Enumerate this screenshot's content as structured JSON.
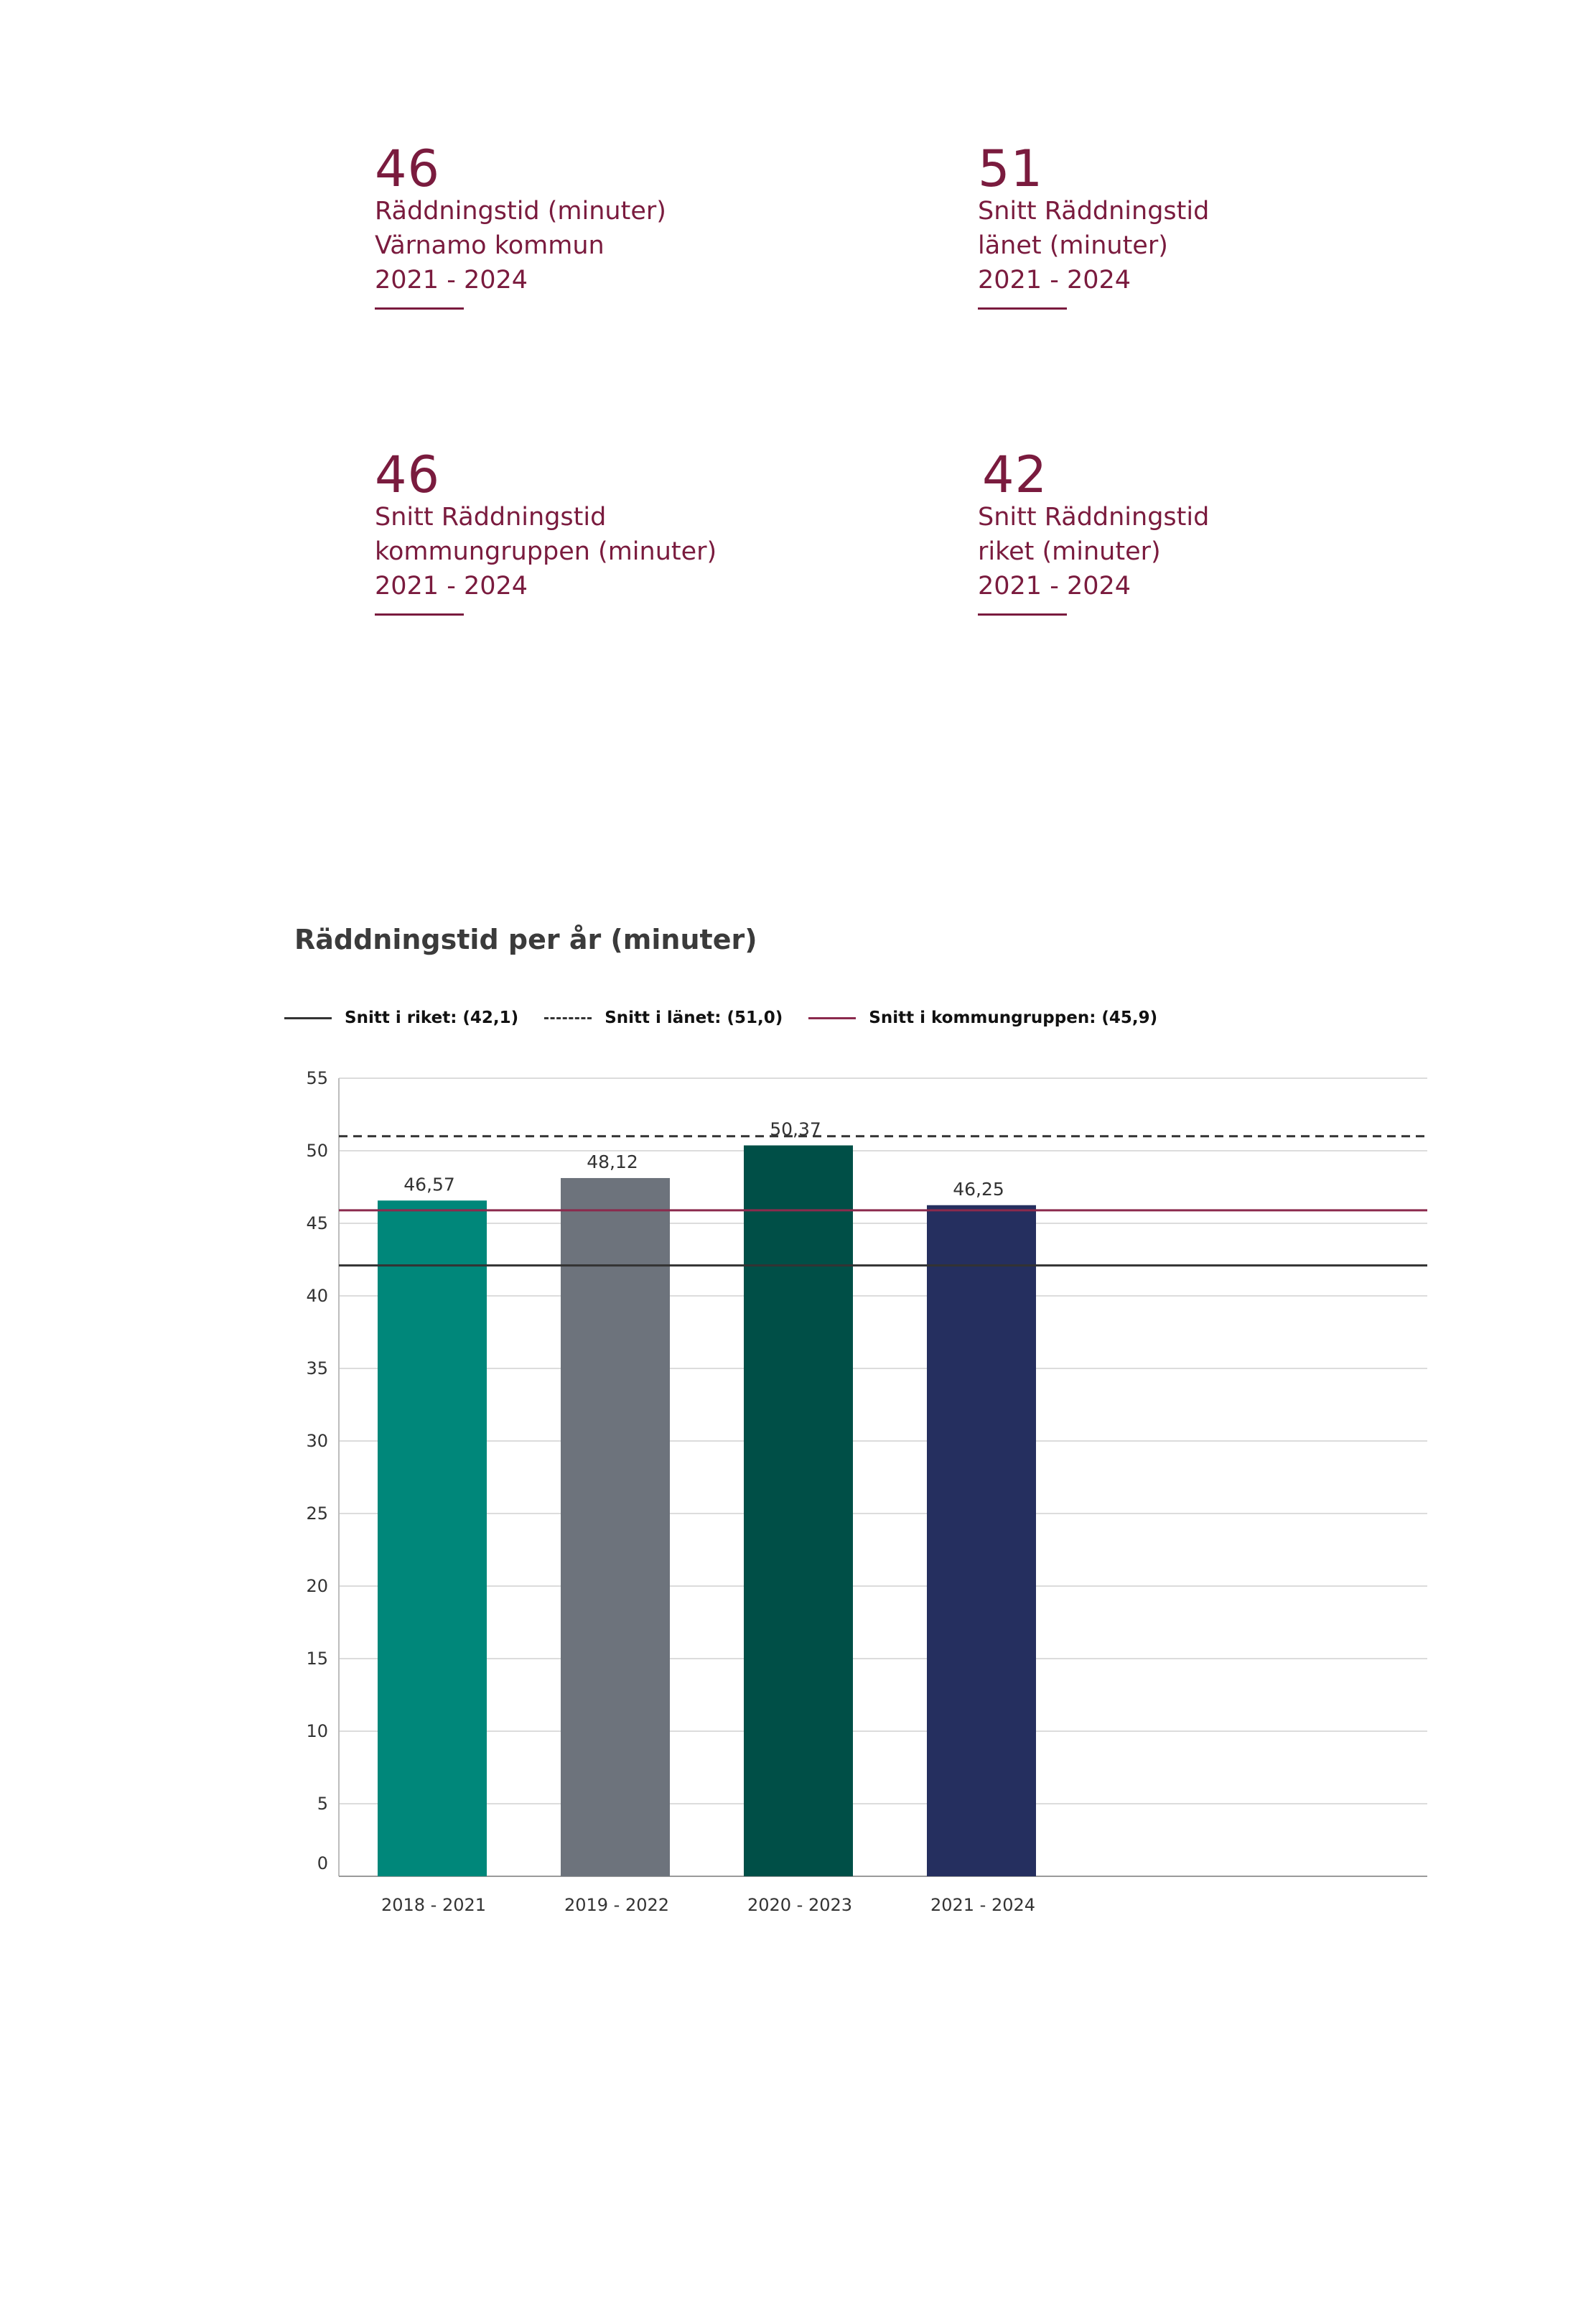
{
  "kpis": [
    {
      "value": "46",
      "lines": [
        "Räddningstid (minuter)",
        "Värnamo kommun",
        "2021 - 2024"
      ]
    },
    {
      "value": "51",
      "lines": [
        "Snitt Räddningstid",
        "länet (minuter)",
        "2021 - 2024"
      ]
    },
    {
      "value": "46",
      "lines": [
        "Snitt Räddningstid",
        "kommungruppen (minuter)",
        "2021 - 2024"
      ]
    },
    {
      "value": "42",
      "lines": [
        "Snitt Räddningstid",
        "riket (minuter)",
        "2021 - 2024"
      ]
    }
  ],
  "legend": {
    "riket": "Snitt i riket: (42,1)",
    "lanet": "Snitt i länet: (51,0)",
    "kommungruppen": "Snitt i kommungruppen: (45,9)"
  },
  "colors": {
    "accent": "#7a1b3e",
    "riket_line": "#333333",
    "lanet_line": "#333333",
    "kommungruppen_line": "#8b2a4d"
  },
  "chart_data": {
    "type": "bar",
    "title": "Räddningstid per år (minuter)",
    "categories": [
      "2018 - 2021",
      "2019 - 2022",
      "2020 - 2023",
      "2021 - 2024"
    ],
    "values": [
      46.57,
      48.12,
      50.37,
      46.25
    ],
    "value_labels": [
      "46,57",
      "48,12",
      "50,37",
      "46,25"
    ],
    "bar_colors": [
      "#00877a",
      "#6d737c",
      "#004f47",
      "#252f5f"
    ],
    "ylim": [
      0,
      55
    ],
    "yticks": [
      0,
      5,
      10,
      15,
      20,
      25,
      30,
      35,
      40,
      45,
      50,
      55
    ],
    "reference_lines": [
      {
        "name": "Snitt i riket",
        "value": 42.1,
        "style": "solid",
        "color": "#333333"
      },
      {
        "name": "Snitt i länet",
        "value": 51.0,
        "style": "dashed",
        "color": "#333333"
      },
      {
        "name": "Snitt i kommungruppen",
        "value": 45.9,
        "style": "solid",
        "color": "#8b2a4d"
      }
    ],
    "grid": true,
    "legend_position": "top-left"
  }
}
